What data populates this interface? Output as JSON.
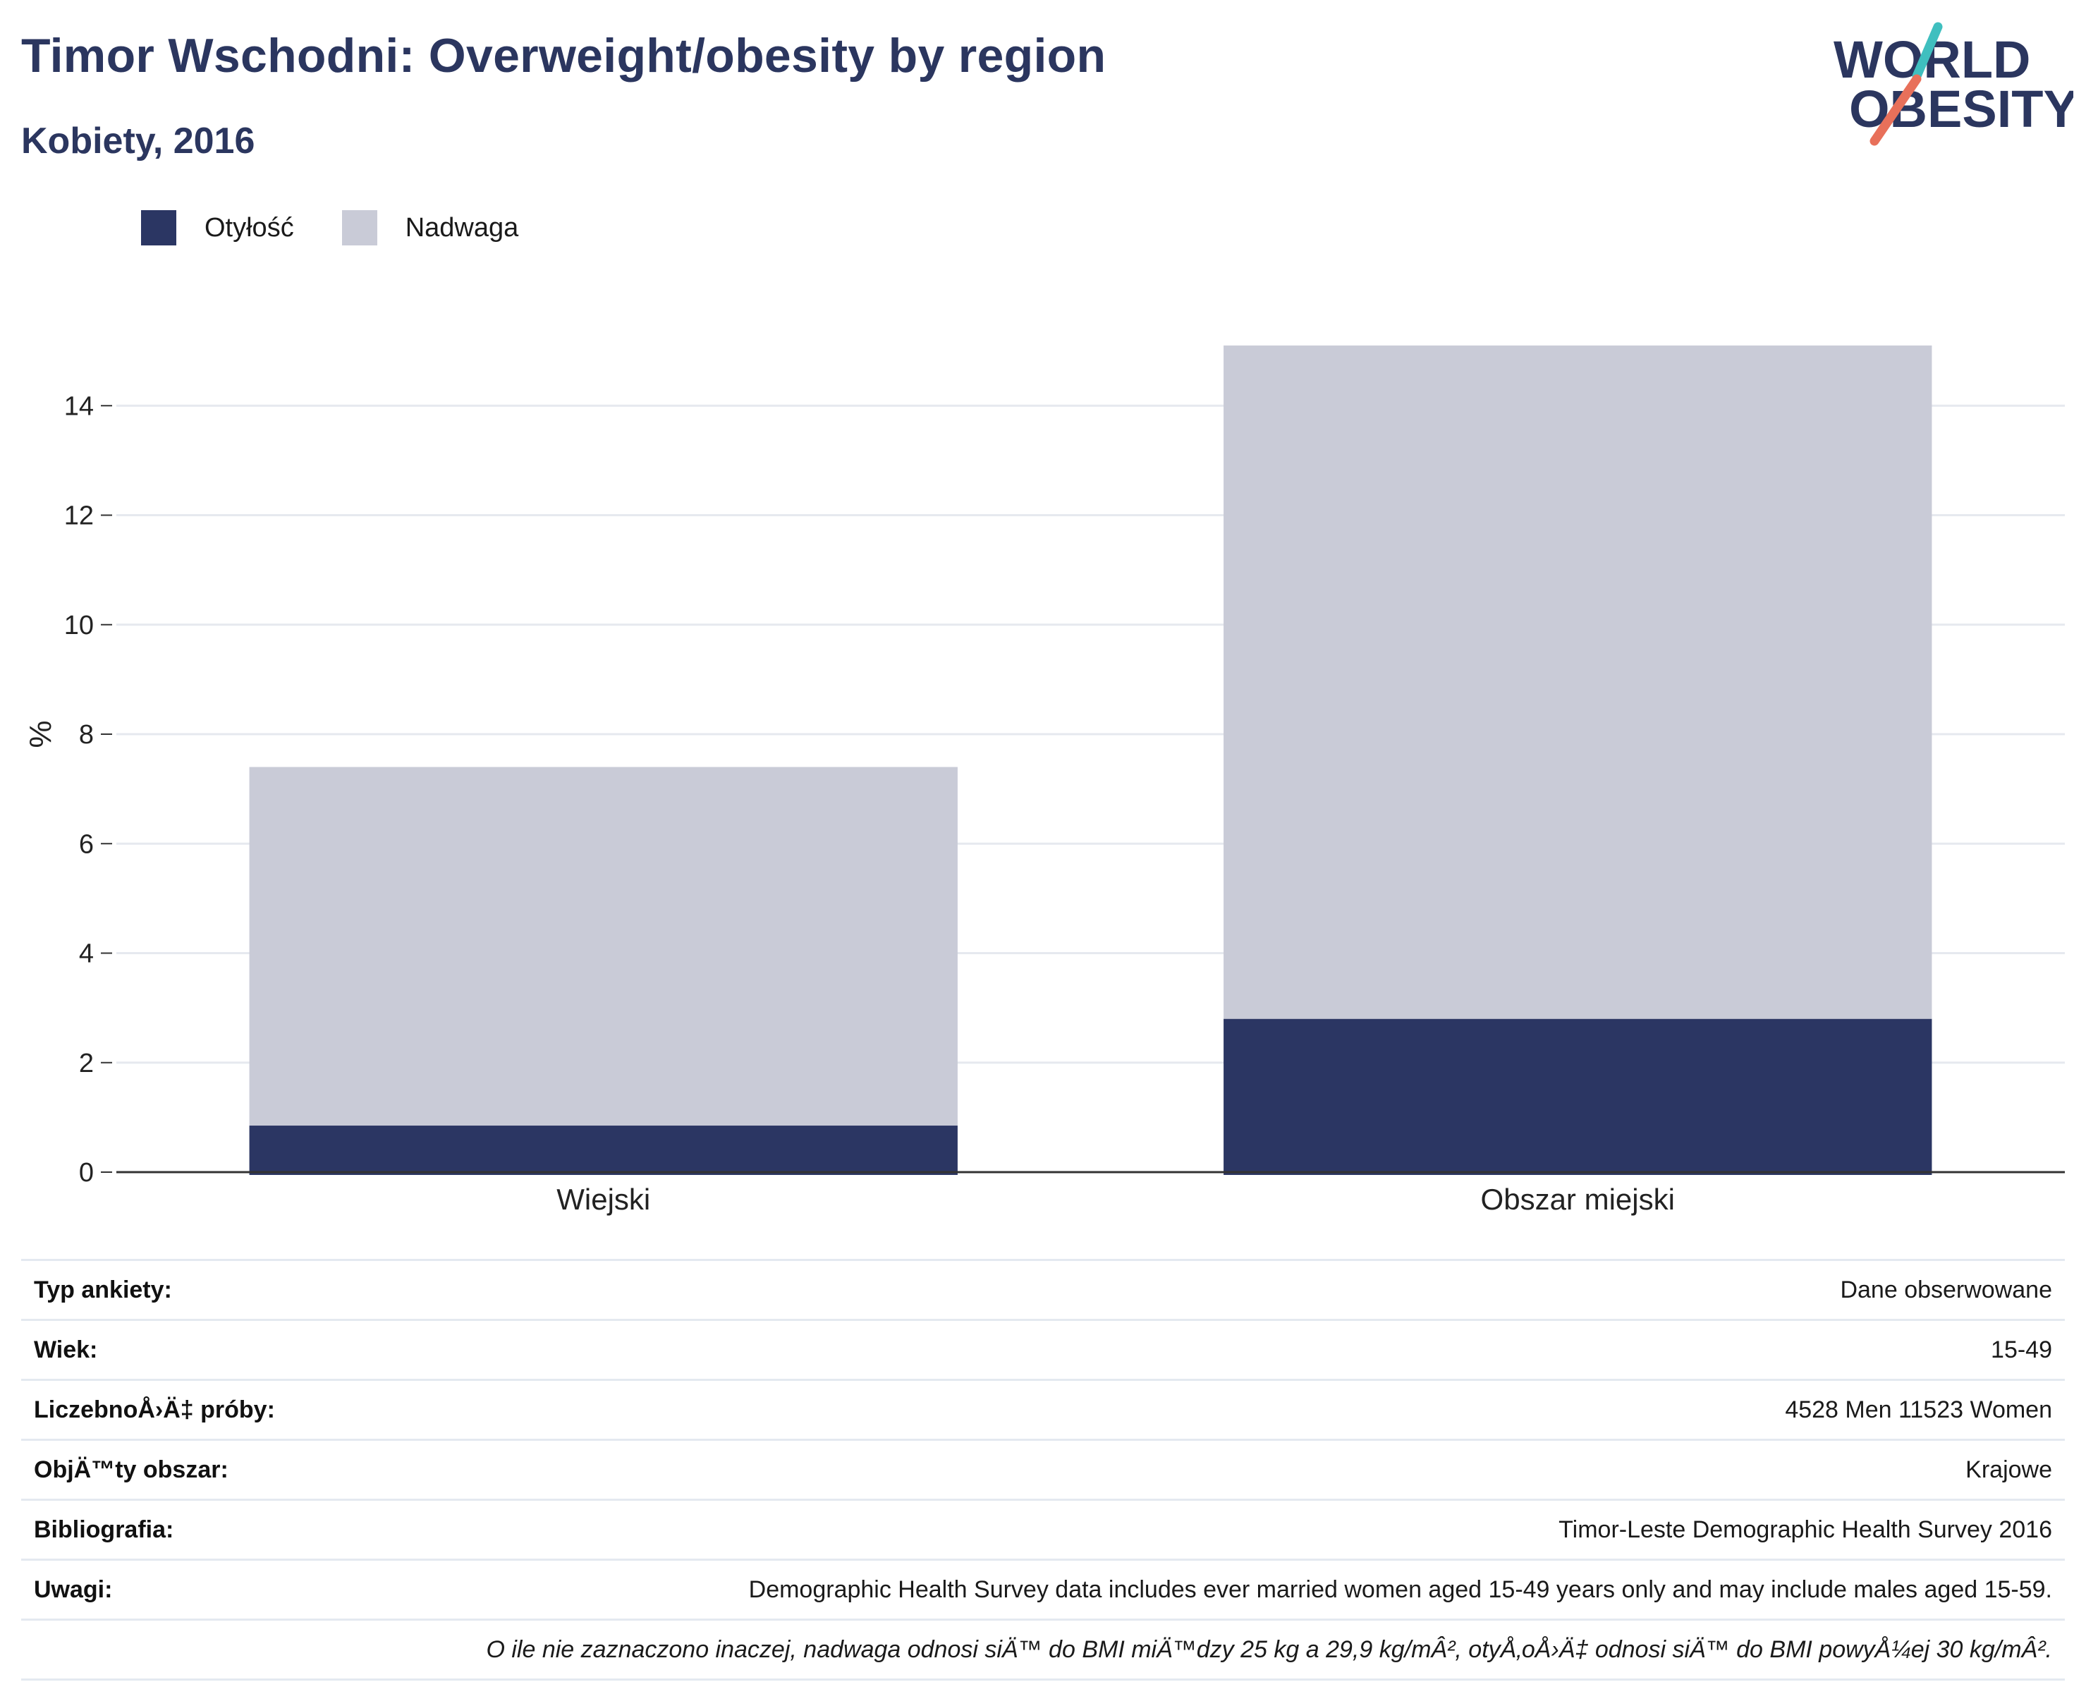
{
  "header": {
    "title": "Timor Wschodni: Overweight/obesity by region",
    "subtitle": "Kobiety, 2016"
  },
  "logo": {
    "line1": "WORLD",
    "line2": "OBESITY",
    "icon": "world-obesity-logo"
  },
  "colors": {
    "obesity": "#2b3663",
    "overweight": "#c9cbd7",
    "title": "#2b365f",
    "logo_teal": "#3fbfbf",
    "logo_coral": "#e8705a"
  },
  "chart_data": {
    "type": "bar",
    "stacked": true,
    "categories": [
      "Wiejski",
      "Obszar miejski"
    ],
    "series": [
      {
        "name": "Otyłość",
        "values": [
          0.85,
          2.8
        ]
      },
      {
        "name": "Nadwaga",
        "values": [
          6.55,
          12.3
        ]
      }
    ],
    "ylabel": "%",
    "xlabel": "",
    "ylim": [
      0,
      16
    ],
    "yticks": [
      0,
      2,
      4,
      6,
      8,
      10,
      12,
      14
    ],
    "grid": true,
    "legend_position": "top-left"
  },
  "info": [
    {
      "label": "Typ ankiety:",
      "value": "Dane obserwowane"
    },
    {
      "label": "Wiek:",
      "value": "15-49"
    },
    {
      "label": "LiczebnoÅ›Ä‡ próby:",
      "value": "4528 Men 11523 Women"
    },
    {
      "label": "ObjÄ™ty obszar:",
      "value": "Krajowe"
    },
    {
      "label": "Bibliografia:",
      "value": "Timor-Leste Demographic Health Survey 2016"
    },
    {
      "label": "Uwagi:",
      "value": "Demographic Health Survey data includes ever married women aged 15-49 years only and may include males aged 15-59."
    }
  ],
  "footnote": "O ile nie zaznaczono inaczej, nadwaga odnosi siÄ™ do BMI miÄ™dzy 25 kg a 29,9 kg/mÂ², otyÅ‚oÅ›Ä‡ odnosi siÄ™ do BMI powyÅ¼ej 30 kg/mÂ²."
}
